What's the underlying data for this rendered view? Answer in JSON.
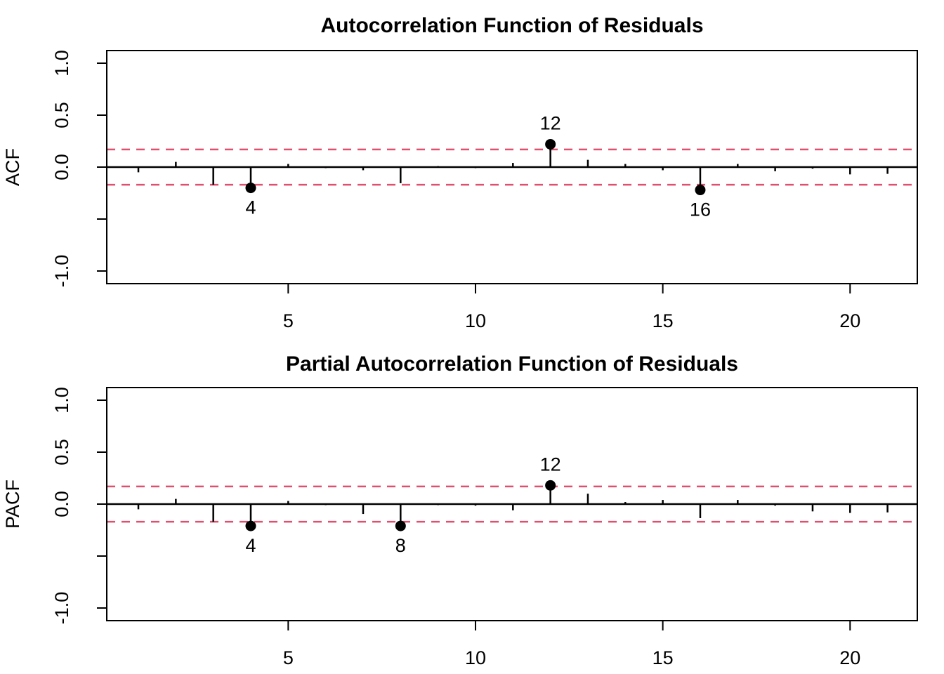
{
  "figure": {
    "background": "#ffffff",
    "axis_color": "#000000",
    "bar_color": "#000000",
    "point_color": "#000000",
    "band_color": "#e0506e"
  },
  "chart_data": [
    {
      "type": "bar",
      "subtype": "stem-acf",
      "title": "Autocorrelation Function of Residuals",
      "ylabel": "ACF",
      "xlabel": "",
      "x": [
        1,
        2,
        3,
        4,
        5,
        6,
        7,
        8,
        9,
        10,
        11,
        12,
        13,
        14,
        15,
        16,
        17,
        18,
        19,
        20,
        21
      ],
      "values": [
        -0.05,
        0.05,
        -0.17,
        -0.2,
        0.03,
        -0.01,
        -0.03,
        -0.155,
        0.01,
        -0.01,
        0.04,
        0.22,
        0.07,
        0.03,
        -0.03,
        -0.22,
        0.03,
        -0.04,
        -0.015,
        -0.07,
        -0.065
      ],
      "confidence_band": 0.17,
      "band_style": "dashed",
      "xticks": [
        5,
        10,
        15,
        20
      ],
      "yticks": [
        1.0,
        0.5,
        0.0,
        -0.5,
        -1.0
      ],
      "ytick_labels": [
        "1.0",
        "0.5",
        "0.0",
        "",
        "-1.0"
      ],
      "ylim": [
        -1.12,
        1.12
      ],
      "xlim": [
        0.15,
        21.8
      ],
      "grid": false,
      "legend": null,
      "marked_points": [
        {
          "lag": 4,
          "value": -0.2,
          "label": "4",
          "label_side": "below"
        },
        {
          "lag": 12,
          "value": 0.22,
          "label": "12",
          "label_side": "above"
        },
        {
          "lag": 16,
          "value": -0.22,
          "label": "16",
          "label_side": "below"
        }
      ]
    },
    {
      "type": "bar",
      "subtype": "stem-pacf",
      "title": "Partial Autocorrelation Function of Residuals",
      "ylabel": "PACF",
      "xlabel": "",
      "x": [
        1,
        2,
        3,
        4,
        5,
        6,
        7,
        8,
        9,
        10,
        11,
        12,
        13,
        14,
        15,
        16,
        17,
        18,
        19,
        20,
        21
      ],
      "values": [
        -0.05,
        0.05,
        -0.17,
        -0.21,
        0.03,
        -0.01,
        -0.095,
        -0.21,
        -0.01,
        -0.015,
        -0.06,
        0.18,
        0.1,
        0.02,
        0.04,
        -0.135,
        0.04,
        -0.015,
        -0.07,
        -0.085,
        -0.08
      ],
      "confidence_band": 0.17,
      "band_style": "dashed",
      "xticks": [
        5,
        10,
        15,
        20
      ],
      "yticks": [
        1.0,
        0.5,
        0.0,
        -0.5,
        -1.0
      ],
      "ytick_labels": [
        "1.0",
        "0.5",
        "0.0",
        "",
        "-1.0"
      ],
      "ylim": [
        -1.12,
        1.12
      ],
      "xlim": [
        0.15,
        21.8
      ],
      "grid": false,
      "legend": null,
      "marked_points": [
        {
          "lag": 4,
          "value": -0.21,
          "label": "4",
          "label_side": "below"
        },
        {
          "lag": 8,
          "value": -0.21,
          "label": "8",
          "label_side": "below"
        },
        {
          "lag": 12,
          "value": 0.18,
          "label": "12",
          "label_side": "above"
        }
      ]
    }
  ]
}
